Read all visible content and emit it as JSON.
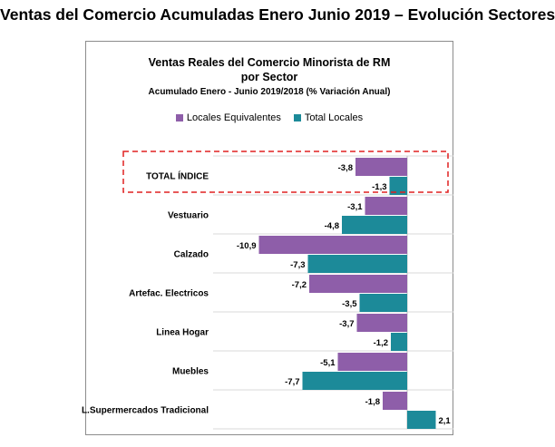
{
  "page_title": "Ventas del Comercio Acumuladas Enero Junio 2019 – Evolución Sectores",
  "chart_data": {
    "type": "bar",
    "orientation": "horizontal",
    "title": "Ventas Reales del Comercio Minorista de RM",
    "title_line2": "por Sector",
    "subtitle": "Acumulado Enero - Junio 2019/2018 (% Variación Anual)",
    "categories": [
      "TOTAL ÍNDICE",
      "Vestuario",
      "Calzado",
      "Artefac. Electricos",
      "Linea Hogar",
      "Muebles",
      "L.Supermercados Tradicional"
    ],
    "series": [
      {
        "name": "Locales Equivalentes",
        "color": "#8e5ea9",
        "values": [
          -3.8,
          -3.1,
          -10.9,
          -7.2,
          -3.7,
          -5.1,
          -1.8
        ],
        "labels": [
          "-3,8",
          "-3,1",
          "-10,9",
          "-7,2",
          "-3,7",
          "-5,1",
          "-1,8"
        ]
      },
      {
        "name": "Total Locales",
        "color": "#1c8a99",
        "values": [
          -1.3,
          -4.8,
          -7.3,
          -3.5,
          -1.2,
          -7.7,
          2.1
        ],
        "labels": [
          "-1,3",
          "-4,8",
          "-7,3",
          "-3,5",
          "-1,2",
          "-7,7",
          "2,1"
        ]
      }
    ],
    "highlight_category": "TOTAL ÍNDICE",
    "highlight_color": "#e02020",
    "gridlines": true,
    "legend_position": "top"
  }
}
